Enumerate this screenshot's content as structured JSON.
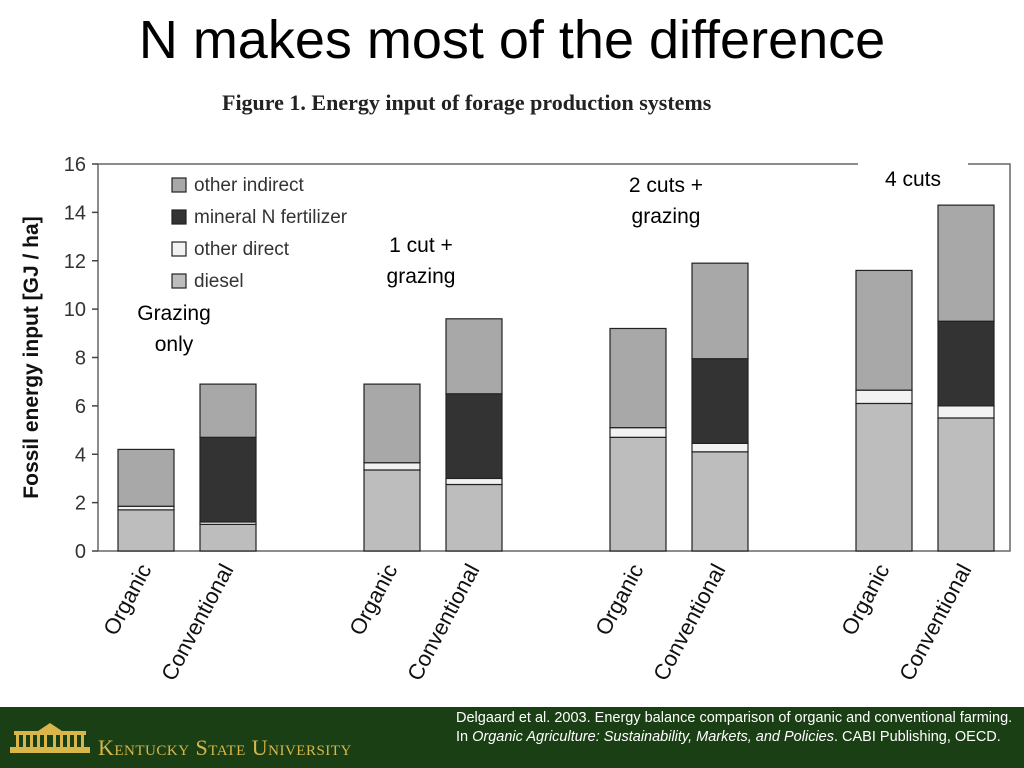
{
  "slide_title": "N makes most of the difference",
  "figure_title": "Figure 1. Energy input of forage production systems",
  "footer": {
    "logo_text": "Kentucky State University",
    "citation_part1": "Delgaard et al. 2003. Energy balance comparison of organic and conventional farming. In ",
    "citation_italic": "Organic Agriculture: Sustainability, Markets, and Policies",
    "citation_part2": ". CABI Publishing, OECD."
  },
  "chart_data": {
    "type": "bar",
    "stacked": true,
    "ylabel": "Fossil energy input [GJ / ha]",
    "xlabel": "",
    "ylim": [
      0,
      16
    ],
    "yticks": [
      0,
      2,
      4,
      6,
      8,
      10,
      12,
      14,
      16
    ],
    "grid": false,
    "legend_position": "top-left",
    "categories": [
      "Organic",
      "Conventional",
      "Organic",
      "Conventional",
      "Organic",
      "Conventional",
      "Organic",
      "Conventional"
    ],
    "groups": [
      {
        "label": "Grazing\nonly",
        "bars": [
          0,
          1
        ]
      },
      {
        "label": "1 cut +\ngrazing",
        "bars": [
          2,
          3
        ]
      },
      {
        "label": "2 cuts +\ngrazing",
        "bars": [
          4,
          5
        ]
      },
      {
        "label": "4 cuts",
        "bars": [
          6,
          7
        ]
      }
    ],
    "series": [
      {
        "name": "diesel",
        "color": "#bdbdbd",
        "values": [
          1.7,
          1.1,
          3.35,
          2.75,
          4.7,
          4.1,
          6.1,
          5.5
        ]
      },
      {
        "name": "other direct",
        "color": "#f2f2f2",
        "values": [
          0.15,
          0.1,
          0.3,
          0.25,
          0.4,
          0.35,
          0.55,
          0.5
        ]
      },
      {
        "name": "mineral N fertilizer",
        "color": "#333333",
        "values": [
          0.0,
          3.5,
          0.0,
          3.5,
          0.0,
          3.5,
          0.0,
          3.5
        ]
      },
      {
        "name": "other indirect",
        "color": "#a8a8a8",
        "values": [
          2.35,
          2.2,
          3.25,
          3.1,
          4.1,
          3.95,
          4.95,
          4.8
        ]
      }
    ],
    "legend_order": [
      "other indirect",
      "mineral N fertilizer",
      "other direct",
      "diesel"
    ]
  }
}
